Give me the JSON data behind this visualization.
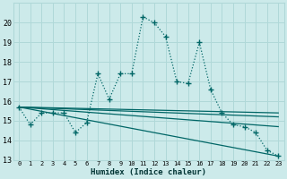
{
  "xlabel": "Humidex (Indice chaleur)",
  "bg_color": "#cceaea",
  "grid_color": "#b0d8d8",
  "line_color": "#006666",
  "xlim": [
    -0.5,
    23.5
  ],
  "ylim": [
    13,
    21
  ],
  "yticks": [
    13,
    14,
    15,
    16,
    17,
    18,
    19,
    20
  ],
  "xticks": [
    0,
    1,
    2,
    3,
    4,
    5,
    6,
    7,
    8,
    9,
    10,
    11,
    12,
    13,
    14,
    15,
    16,
    17,
    18,
    19,
    20,
    21,
    22,
    23
  ],
  "series1_x": [
    0,
    1,
    2,
    3,
    4,
    5,
    6,
    7,
    8,
    9,
    10,
    11,
    12,
    13,
    14,
    15,
    16,
    17,
    18,
    19,
    20,
    21,
    22,
    23
  ],
  "series1_y": [
    15.7,
    14.8,
    15.4,
    15.4,
    15.4,
    14.4,
    14.9,
    17.4,
    16.1,
    17.4,
    17.4,
    20.3,
    20.0,
    19.3,
    17.0,
    16.9,
    19.0,
    16.6,
    15.4,
    14.8,
    14.7,
    14.4,
    13.5,
    13.2
  ],
  "trend1_x": [
    0,
    23
  ],
  "trend1_y": [
    15.7,
    15.4
  ],
  "trend2_x": [
    0,
    23
  ],
  "trend2_y": [
    15.7,
    15.2
  ],
  "trend3_x": [
    0,
    23
  ],
  "trend3_y": [
    15.7,
    14.7
  ],
  "trend4_x": [
    0,
    23
  ],
  "trend4_y": [
    15.7,
    13.2
  ]
}
